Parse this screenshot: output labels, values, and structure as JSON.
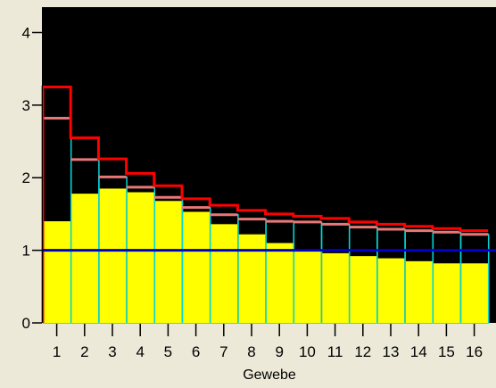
{
  "chart_data": {
    "type": "bar",
    "xlabel": "Gewebe",
    "ylabel": "",
    "ylim": [
      0,
      4.35
    ],
    "yticks": [
      0,
      1,
      2,
      3,
      4
    ],
    "categories": [
      "1",
      "2",
      "3",
      "4",
      "5",
      "6",
      "7",
      "8",
      "9",
      "10",
      "11",
      "12",
      "13",
      "14",
      "15",
      "16"
    ],
    "series": [
      {
        "values": [
          1.4,
          1.78,
          1.85,
          1.8,
          1.68,
          1.53,
          1.36,
          1.22,
          1.1,
          0.99,
          0.96,
          0.92,
          0.89,
          0.85,
          0.82,
          0.82
        ]
      },
      {
        "values": [
          2.82,
          2.25,
          2.01,
          1.87,
          1.73,
          1.59,
          1.49,
          1.43,
          1.4,
          1.39,
          1.36,
          1.32,
          1.29,
          1.27,
          1.25,
          1.22
        ]
      },
      {
        "values": [
          3.25,
          2.55,
          2.26,
          2.06,
          1.89,
          1.71,
          1.62,
          1.55,
          1.5,
          1.47,
          1.44,
          1.39,
          1.36,
          1.33,
          1.3,
          1.27
        ]
      }
    ],
    "reference_line": 1.0,
    "grid": false,
    "legend": "none",
    "colors": {
      "background": "#ece9d8",
      "plot_background": "#000000",
      "bar_fill": "#ffff00",
      "bar_edge": "#00d8d8",
      "upper_marker": "#ff0000",
      "lower_marker": "#e87878",
      "reference_line": "#0000c8",
      "axis": "#000000"
    }
  }
}
